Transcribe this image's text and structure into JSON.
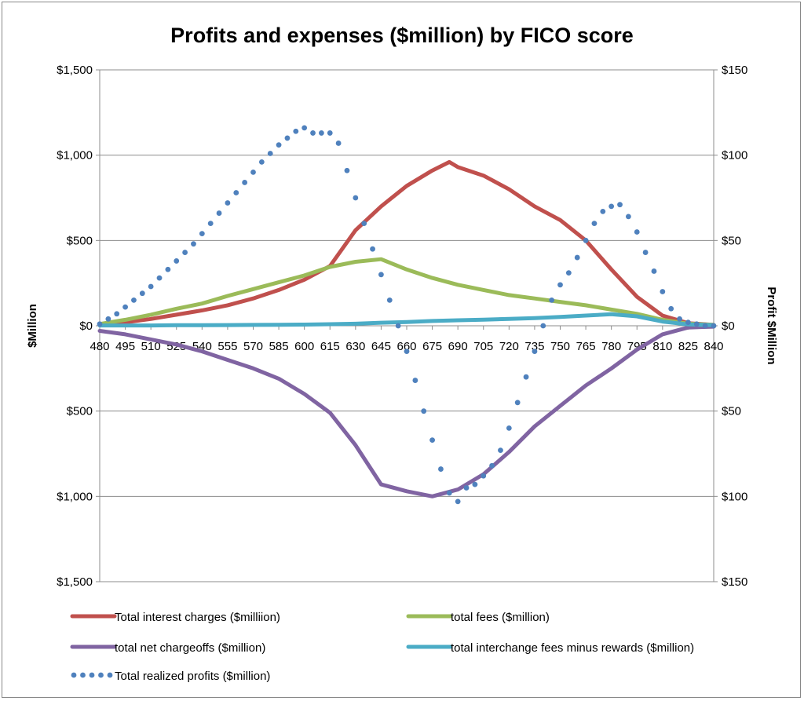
{
  "chart_data": {
    "type": "line",
    "title": "Profits and expenses ($million) by FICO score",
    "xlabel": "",
    "ylabel": "$Million",
    "y2label": "Profit $Million",
    "ylim": [
      -1500,
      1500
    ],
    "y2lim": [
      -150,
      150
    ],
    "yticks": [
      {
        "value": 1500,
        "label": "$1,500",
        "negative": false
      },
      {
        "value": 1000,
        "label": "$1,000",
        "negative": false
      },
      {
        "value": 500,
        "label": "$500",
        "negative": false
      },
      {
        "value": 0,
        "label": "$0",
        "negative": false
      },
      {
        "value": -500,
        "label": "$500",
        "negative": true
      },
      {
        "value": -1000,
        "label": "$1,000",
        "negative": true
      },
      {
        "value": -1500,
        "label": "$1,500",
        "negative": true
      }
    ],
    "y2ticks": [
      {
        "value": 150,
        "label": "$150",
        "negative": false
      },
      {
        "value": 100,
        "label": "$100",
        "negative": false
      },
      {
        "value": 50,
        "label": "$50",
        "negative": false
      },
      {
        "value": 0,
        "label": "$0",
        "negative": false
      },
      {
        "value": -50,
        "label": "$50",
        "negative": true
      },
      {
        "value": -100,
        "label": "$100",
        "negative": true
      },
      {
        "value": -150,
        "label": "$150",
        "negative": true
      }
    ],
    "x": [
      480,
      495,
      510,
      525,
      540,
      555,
      570,
      585,
      600,
      615,
      630,
      645,
      660,
      675,
      690,
      705,
      720,
      735,
      750,
      765,
      780,
      795,
      810,
      825,
      840
    ],
    "xtick_labels": [
      "480",
      "495",
      "510",
      "525",
      "540",
      "555",
      "570",
      "585",
      "600",
      "615",
      "630",
      "645",
      "660",
      "675",
      "690",
      "705",
      "720",
      "735",
      "750",
      "765",
      "780",
      "795",
      "810",
      "825",
      "840"
    ],
    "negative_color": "#ff0000",
    "series": [
      {
        "name": "Total interest charges ($milliion)",
        "axis": "left",
        "style": "solid",
        "color": "#c0504d",
        "x": [
          480,
          495,
          510,
          525,
          540,
          555,
          570,
          585,
          600,
          615,
          630,
          645,
          660,
          675,
          685,
          690,
          705,
          720,
          735,
          750,
          765,
          780,
          795,
          810,
          825,
          840
        ],
        "values": [
          5,
          20,
          40,
          65,
          90,
          120,
          160,
          210,
          270,
          350,
          560,
          700,
          820,
          910,
          960,
          930,
          880,
          800,
          700,
          620,
          500,
          330,
          170,
          60,
          15,
          5
        ]
      },
      {
        "name": "total fees ($million)",
        "axis": "left",
        "style": "solid",
        "color": "#9bbb59",
        "x": [
          480,
          495,
          510,
          525,
          540,
          555,
          570,
          585,
          600,
          615,
          630,
          645,
          660,
          675,
          690,
          705,
          720,
          735,
          750,
          765,
          780,
          795,
          810,
          825,
          840
        ],
        "values": [
          10,
          35,
          65,
          100,
          130,
          175,
          215,
          255,
          295,
          345,
          375,
          390,
          330,
          280,
          240,
          210,
          180,
          160,
          140,
          120,
          95,
          70,
          35,
          12,
          5
        ]
      },
      {
        "name": "total net chargeoffs ($million)",
        "axis": "left",
        "style": "solid",
        "color": "#8064a2",
        "x": [
          480,
          495,
          510,
          525,
          540,
          555,
          570,
          585,
          600,
          615,
          630,
          645,
          660,
          675,
          690,
          705,
          720,
          735,
          750,
          765,
          780,
          795,
          810,
          825,
          840
        ],
        "values": [
          -30,
          -50,
          -80,
          -110,
          -150,
          -200,
          -250,
          -310,
          -400,
          -510,
          -700,
          -930,
          -970,
          -1000,
          -960,
          -870,
          -740,
          -590,
          -470,
          -350,
          -250,
          -140,
          -50,
          -10,
          -5
        ]
      },
      {
        "name": "total interchange fees minus rewards ($million)",
        "axis": "left",
        "style": "solid",
        "color": "#4bacc6",
        "x": [
          480,
          495,
          510,
          525,
          540,
          555,
          570,
          585,
          600,
          615,
          630,
          645,
          660,
          675,
          690,
          705,
          720,
          735,
          750,
          765,
          780,
          795,
          810,
          825,
          840
        ],
        "values": [
          2,
          2,
          2,
          3,
          3,
          4,
          5,
          6,
          7,
          9,
          12,
          18,
          22,
          28,
          32,
          36,
          40,
          45,
          52,
          60,
          68,
          55,
          25,
          8,
          3
        ]
      },
      {
        "name": "Total realized profits ($million)",
        "axis": "right",
        "style": "dotted",
        "color": "#4f81bd",
        "x": [
          480,
          485,
          490,
          495,
          500,
          505,
          510,
          515,
          520,
          525,
          530,
          535,
          540,
          545,
          550,
          555,
          560,
          565,
          570,
          575,
          580,
          585,
          590,
          595,
          600,
          605,
          610,
          615,
          620,
          625,
          630,
          635,
          640,
          645,
          650,
          655,
          660,
          665,
          670,
          675,
          680,
          685,
          690,
          695,
          700,
          705,
          710,
          715,
          720,
          725,
          730,
          735,
          740,
          745,
          750,
          755,
          760,
          765,
          770,
          775,
          780,
          785,
          790,
          795,
          800,
          805,
          810,
          815,
          820,
          825,
          830,
          835,
          840
        ],
        "values": [
          1,
          4,
          7,
          11,
          15,
          19,
          23,
          28,
          33,
          38,
          43,
          48,
          54,
          60,
          66,
          72,
          78,
          84,
          90,
          96,
          101,
          106,
          110,
          114,
          116,
          113,
          113,
          113,
          107,
          91,
          75,
          60,
          45,
          30,
          15,
          0,
          -15,
          -32,
          -50,
          -67,
          -84,
          -98,
          -103,
          -95,
          -93,
          -88,
          -82,
          -73,
          -60,
          -45,
          -30,
          -15,
          0,
          15,
          24,
          31,
          40,
          50,
          60,
          67,
          70,
          71,
          64,
          55,
          43,
          32,
          20,
          10,
          4,
          2,
          1,
          0,
          0
        ]
      }
    ],
    "legend": {
      "position": "bottom",
      "order": [
        0,
        1,
        2,
        3,
        4
      ]
    }
  }
}
